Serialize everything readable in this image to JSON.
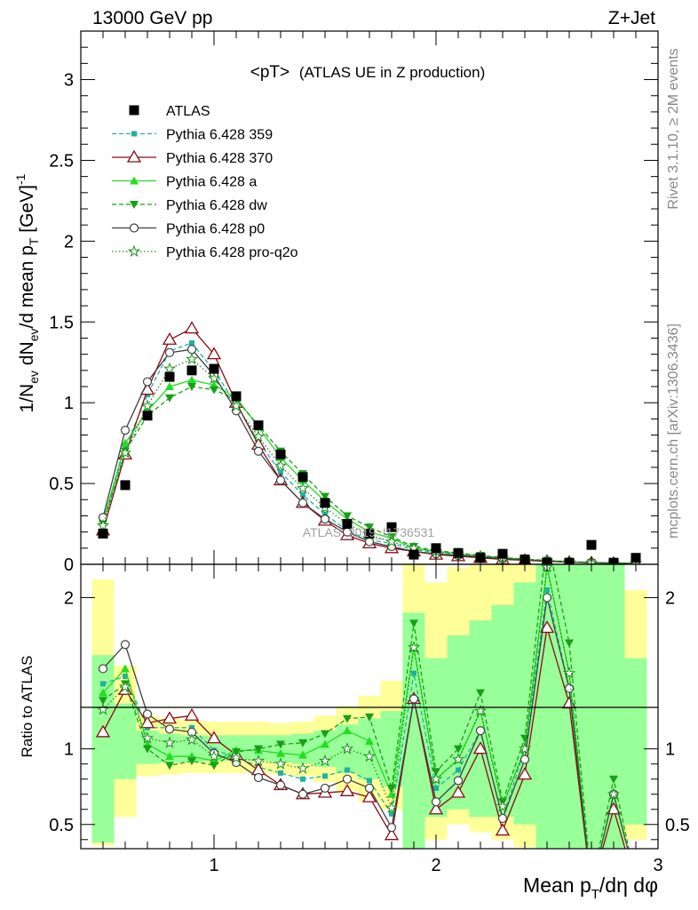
{
  "header": {
    "left": "13000 GeV pp",
    "right": "Z+Jet"
  },
  "plot": {
    "title_main": "<pT>",
    "title_sub": "(ATLAS UE in Z production)",
    "watermark": "ATLAS_2019_I1736531",
    "side_label_top": "Rivet 3.1.10, ≥ 2M events",
    "side_label_bottom": "mcplots.cern.ch [arXiv:1306.3436]"
  },
  "colors": {
    "atlas": "#000000",
    "p359": "#20b2a0",
    "p370": "#8b0a14",
    "pa": "#22dd22",
    "pdw": "#16a016",
    "pp0": "#404040",
    "pq2o": "#1f8f1f",
    "band_outer": "#ffff99",
    "band_inner": "#99ff99"
  },
  "chart_data": [
    {
      "type": "line",
      "panel": "main",
      "ylabel": "1/N_ev dN_ev/d mean p_T [GeV]^-1",
      "xlim": [
        0.4,
        3.0
      ],
      "ylim": [
        0,
        3.3
      ],
      "yticks": [
        0,
        0.5,
        1,
        1.5,
        2,
        2.5,
        3
      ],
      "ytick_labels": [
        "0",
        "0.5",
        "1",
        "1.5",
        "2",
        "2.5",
        "3"
      ],
      "legend": [
        {
          "key": "atlas",
          "label": "ATLAS"
        },
        {
          "key": "p359",
          "label": "Pythia 6.428 359"
        },
        {
          "key": "p370",
          "label": "Pythia 6.428 370"
        },
        {
          "key": "pa",
          "label": "Pythia 6.428 a"
        },
        {
          "key": "pdw",
          "label": "Pythia 6.428 dw"
        },
        {
          "key": "pp0",
          "label": "Pythia 6.428 p0"
        },
        {
          "key": "pq2o",
          "label": "Pythia 6.428 pro-q2o"
        }
      ],
      "x": [
        0.5,
        0.6,
        0.7,
        0.8,
        0.9,
        1.0,
        1.1,
        1.2,
        1.3,
        1.4,
        1.5,
        1.6,
        1.7,
        1.8,
        1.9,
        2.0,
        2.1,
        2.2,
        2.3,
        2.4,
        2.5,
        2.6,
        2.7,
        2.8,
        2.9
      ],
      "series": [
        {
          "key": "atlas",
          "name": "ATLAS",
          "values": [
            0.19,
            0.49,
            0.92,
            1.16,
            1.2,
            1.21,
            1.04,
            0.86,
            0.68,
            0.54,
            0.38,
            0.25,
            0.19,
            0.23,
            0.06,
            0.1,
            0.07,
            0.04,
            0.065,
            0.03,
            0.01,
            0.01,
            0.12,
            0.01,
            0.04
          ]
        },
        {
          "key": "p359",
          "name": "Pythia 6.428 359",
          "values": [
            0.27,
            0.72,
            1.05,
            1.32,
            1.37,
            1.2,
            0.99,
            0.76,
            0.57,
            0.43,
            0.31,
            0.21,
            0.15,
            0.13,
            0.09,
            0.075,
            0.06,
            0.045,
            0.035,
            0.03,
            0.02,
            0.014,
            0.01,
            0.007,
            0.005
          ]
        },
        {
          "key": "p370",
          "name": "Pythia 6.428 370",
          "values": [
            0.21,
            0.68,
            1.08,
            1.39,
            1.46,
            1.3,
            1.0,
            0.74,
            0.52,
            0.38,
            0.27,
            0.18,
            0.13,
            0.1,
            0.08,
            0.06,
            0.05,
            0.04,
            0.03,
            0.025,
            0.018,
            0.013,
            0.009,
            0.006,
            0.004
          ]
        },
        {
          "key": "pa",
          "name": "Pythia 6.428 a",
          "values": [
            0.26,
            0.75,
            0.95,
            1.1,
            1.14,
            1.11,
            1.03,
            0.85,
            0.66,
            0.52,
            0.39,
            0.28,
            0.2,
            0.16,
            0.1,
            0.08,
            0.065,
            0.05,
            0.04,
            0.03,
            0.022,
            0.015,
            0.01,
            0.007,
            0.005
          ]
        },
        {
          "key": "pdw",
          "name": "Pythia 6.428 dw",
          "values": [
            0.25,
            0.7,
            0.92,
            1.03,
            1.1,
            1.08,
            1.02,
            0.86,
            0.7,
            0.56,
            0.42,
            0.3,
            0.23,
            0.17,
            0.11,
            0.085,
            0.07,
            0.055,
            0.042,
            0.032,
            0.024,
            0.017,
            0.012,
            0.008,
            0.005
          ]
        },
        {
          "key": "pp0",
          "name": "Pythia 6.428 p0",
          "values": [
            0.29,
            0.83,
            1.13,
            1.31,
            1.33,
            1.17,
            0.95,
            0.7,
            0.52,
            0.38,
            0.28,
            0.2,
            0.14,
            0.11,
            0.08,
            0.065,
            0.055,
            0.045,
            0.035,
            0.028,
            0.02,
            0.014,
            0.01,
            0.007,
            0.005
          ]
        },
        {
          "key": "pq2o",
          "name": "Pythia 6.428 pro-q2o",
          "values": [
            0.24,
            0.69,
            0.98,
            1.21,
            1.27,
            1.15,
            0.98,
            0.79,
            0.61,
            0.47,
            0.35,
            0.25,
            0.18,
            0.14,
            0.1,
            0.08,
            0.065,
            0.05,
            0.04,
            0.03,
            0.022,
            0.015,
            0.01,
            0.007,
            0.005
          ]
        }
      ]
    },
    {
      "type": "line",
      "panel": "ratio",
      "xlabel": "Mean p_T/dη dφ",
      "ylabel": "Ratio to ATLAS",
      "xlim": [
        0.4,
        3.0
      ],
      "ylim": [
        0.34,
        2.22
      ],
      "xticks": [
        1,
        2,
        3
      ],
      "xtick_labels": [
        "1",
        "2",
        "3"
      ],
      "yticks": [
        0.5,
        1,
        2
      ],
      "ytick_labels": [
        "0.5",
        "1",
        "2"
      ],
      "x": [
        0.5,
        0.6,
        0.7,
        0.8,
        0.9,
        1.0,
        1.1,
        1.2,
        1.3,
        1.4,
        1.5,
        1.6,
        1.7,
        1.8,
        1.9,
        2.0,
        2.1,
        2.2,
        2.3,
        2.4,
        2.5,
        2.6,
        2.7,
        2.8,
        2.9
      ],
      "band_outer": [
        [
          0.36,
          2.12
        ],
        [
          0.55,
          1.55
        ],
        [
          0.82,
          1.22
        ],
        [
          0.83,
          1.2
        ],
        [
          0.84,
          1.19
        ],
        [
          0.84,
          1.18
        ],
        [
          0.84,
          1.18
        ],
        [
          0.84,
          1.18
        ],
        [
          0.83,
          1.17
        ],
        [
          0.82,
          1.18
        ],
        [
          0.78,
          1.22
        ],
        [
          0.72,
          1.28
        ],
        [
          0.65,
          1.35
        ],
        [
          0.6,
          1.45
        ],
        [
          0.3,
          2.5
        ],
        [
          0.4,
          2.1
        ],
        [
          0.5,
          2.2
        ],
        [
          0.45,
          2.4
        ],
        [
          0.4,
          2.5
        ],
        [
          0.35,
          2.6
        ],
        [
          0.3,
          3.0
        ],
        [
          0.3,
          3.0
        ],
        [
          0.3,
          3.0
        ],
        [
          0.3,
          3.0
        ],
        [
          0.4,
          2.05
        ]
      ],
      "band_inner": [
        [
          0.38,
          1.62
        ],
        [
          0.8,
          1.3
        ],
        [
          0.9,
          1.12
        ],
        [
          0.91,
          1.1
        ],
        [
          0.91,
          1.09
        ],
        [
          0.92,
          1.09
        ],
        [
          0.92,
          1.09
        ],
        [
          0.92,
          1.09
        ],
        [
          0.91,
          1.09
        ],
        [
          0.9,
          1.1
        ],
        [
          0.88,
          1.12
        ],
        [
          0.84,
          1.16
        ],
        [
          0.8,
          1.2
        ],
        [
          0.75,
          1.25
        ],
        [
          0.3,
          1.9
        ],
        [
          0.55,
          1.6
        ],
        [
          0.6,
          1.75
        ],
        [
          0.55,
          1.85
        ],
        [
          0.55,
          1.95
        ],
        [
          0.5,
          2.1
        ],
        [
          0.3,
          2.5
        ],
        [
          0.3,
          2.3
        ],
        [
          0.3,
          2.5
        ],
        [
          0.3,
          2.5
        ],
        [
          0.5,
          1.6
        ]
      ],
      "series": [
        {
          "key": "p359",
          "name": "Pythia 6.428 359",
          "values": [
            1.43,
            1.48,
            1.14,
            1.14,
            1.14,
            0.99,
            0.95,
            0.88,
            0.84,
            0.8,
            0.82,
            0.86,
            0.79,
            0.57,
            1.5,
            0.74,
            0.86,
            1.12,
            0.54,
            1.0,
            2.05,
            1.4,
            0.08,
            0.7,
            0.13
          ]
        },
        {
          "key": "p370",
          "name": "Pythia 6.428 370",
          "values": [
            1.11,
            1.39,
            1.17,
            1.2,
            1.22,
            1.07,
            0.96,
            0.86,
            0.76,
            0.7,
            0.71,
            0.72,
            0.68,
            0.43,
            1.33,
            0.6,
            0.71,
            1.0,
            0.46,
            0.83,
            1.8,
            1.3,
            0.075,
            0.6,
            0.1
          ]
        },
        {
          "key": "pa",
          "name": "Pythia 6.428 a",
          "values": [
            1.37,
            1.53,
            1.03,
            0.95,
            0.95,
            0.92,
            0.99,
            0.99,
            0.97,
            0.96,
            1.03,
            1.12,
            1.05,
            0.7,
            1.67,
            0.8,
            0.93,
            1.25,
            0.62,
            1.0,
            2.2,
            1.5,
            0.08,
            0.7,
            0.13
          ]
        },
        {
          "key": "pdw",
          "name": "Pythia 6.428 dw",
          "values": [
            1.32,
            1.43,
            1.0,
            0.89,
            0.92,
            0.89,
            0.98,
            1.0,
            1.03,
            1.04,
            1.1,
            1.2,
            1.21,
            0.74,
            1.83,
            0.85,
            1.0,
            1.37,
            0.65,
            1.07,
            2.4,
            1.7,
            0.1,
            0.8,
            0.13
          ]
        },
        {
          "key": "pp0",
          "name": "Pythia 6.428 p0",
          "values": [
            1.53,
            1.69,
            1.23,
            1.13,
            1.11,
            0.97,
            0.91,
            0.81,
            0.76,
            0.7,
            0.74,
            0.8,
            0.74,
            0.48,
            1.33,
            0.65,
            0.79,
            1.12,
            0.54,
            0.93,
            2.0,
            1.4,
            0.08,
            0.7,
            0.13
          ]
        },
        {
          "key": "pq2o",
          "name": "Pythia 6.428 pro-q2o",
          "values": [
            1.26,
            1.41,
            1.07,
            1.04,
            1.06,
            0.95,
            0.94,
            0.92,
            0.9,
            0.87,
            0.92,
            1.0,
            0.95,
            0.61,
            1.67,
            0.8,
            0.93,
            1.25,
            0.62,
            1.0,
            2.2,
            1.5,
            0.08,
            0.7,
            0.13
          ]
        }
      ]
    }
  ]
}
